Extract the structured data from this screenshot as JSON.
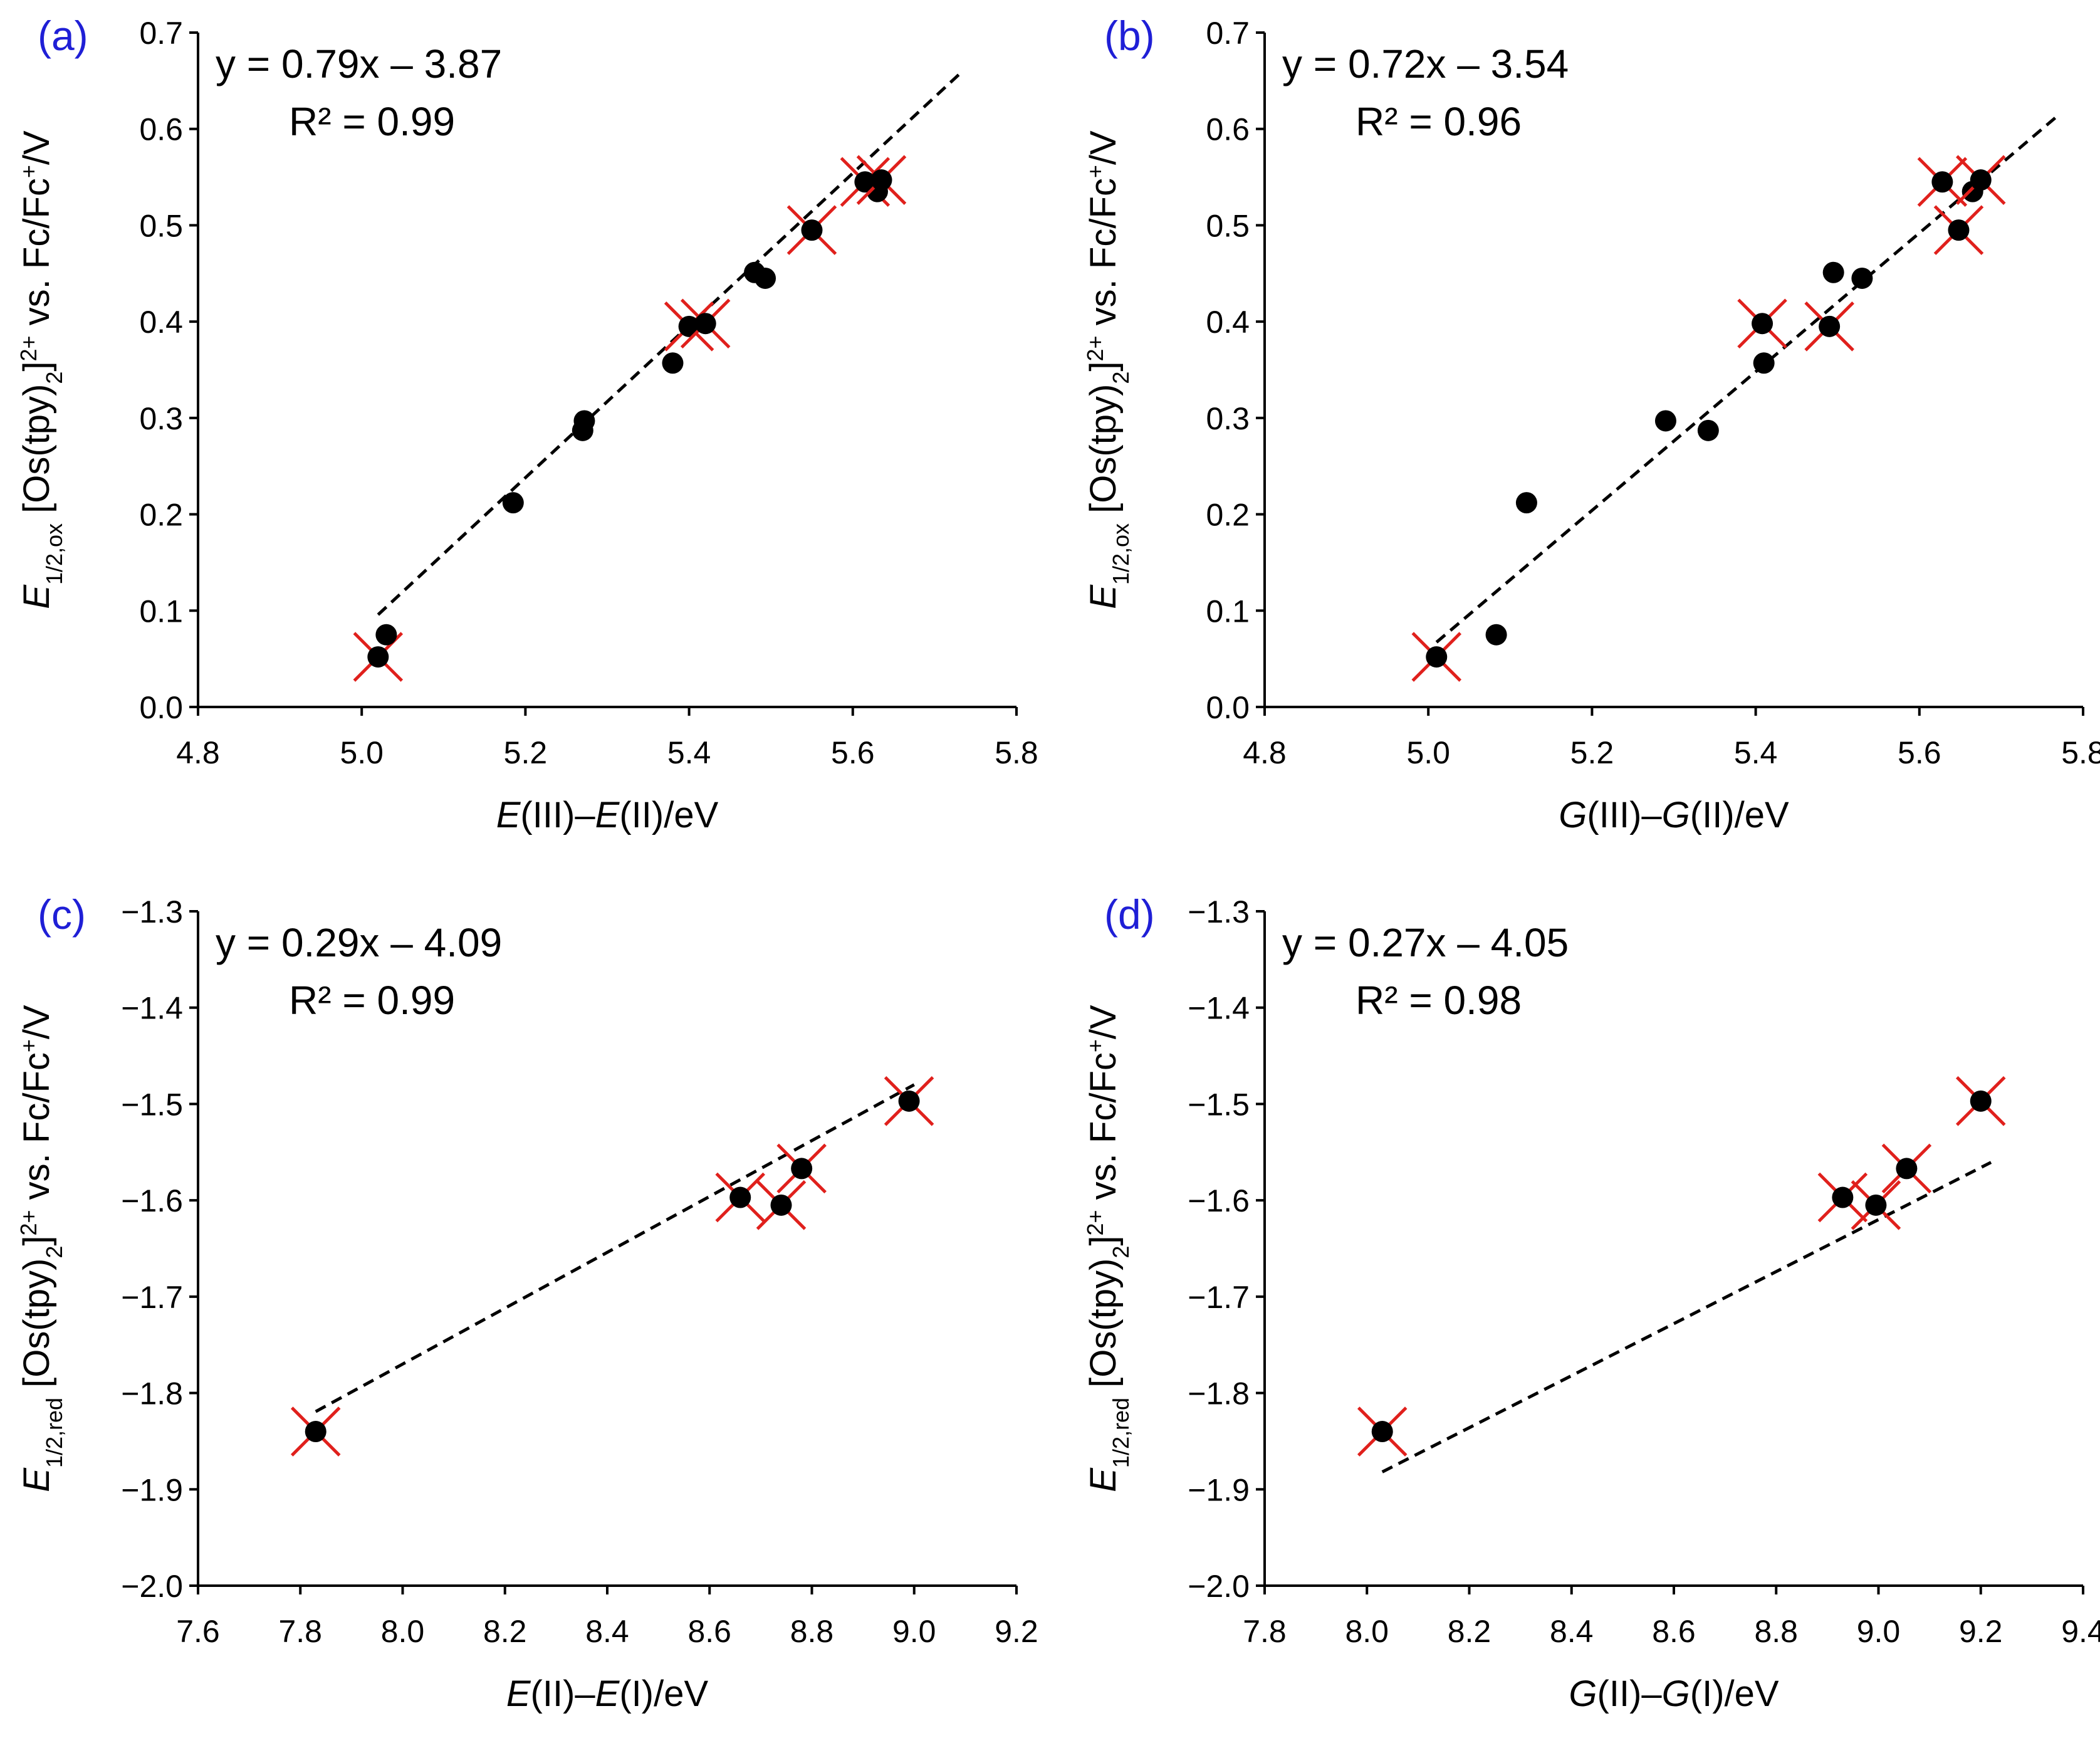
{
  "figure": {
    "chart_data": [
      {
        "type": "scatter",
        "panel_label": "(a)",
        "xlabel_parts": [
          {
            "t": "E",
            "i": true
          },
          {
            "t": "(III)–",
            "i": false
          },
          {
            "t": "E",
            "i": true
          },
          {
            "t": "(II)/eV",
            "i": false
          }
        ],
        "ylabel_parts": [
          {
            "t": "E",
            "i": true
          },
          {
            "t": "1/2,ox",
            "i": false,
            "sub": true
          },
          {
            "t": " [Os(tpy)",
            "i": false
          },
          {
            "t": "2",
            "i": false,
            "sub": true
          },
          {
            "t": "]",
            "i": false
          },
          {
            "t": "2+",
            "i": false,
            "sup": true
          },
          {
            "t": " vs. Fc/Fc",
            "i": false
          },
          {
            "t": "+",
            "i": false,
            "sup": true
          },
          {
            "t": "/V",
            "i": false
          }
        ],
        "xlim": [
          4.8,
          5.8
        ],
        "ylim": [
          0.0,
          0.7
        ],
        "xticks": [
          4.8,
          5.0,
          5.2,
          5.4,
          5.6,
          5.8
        ],
        "yticks": [
          0.0,
          0.1,
          0.2,
          0.3,
          0.4,
          0.5,
          0.6,
          0.7
        ],
        "xtick_labels": [
          "4.8",
          "5.0",
          "5.2",
          "5.4",
          "5.6",
          "5.8"
        ],
        "ytick_labels": [
          "0.0",
          "0.1",
          "0.2",
          "0.3",
          "0.4",
          "0.5",
          "0.6",
          "0.7"
        ],
        "equation": "y = 0.79x – 3.87",
        "r_squared": "R² = 0.99",
        "fit": {
          "slope": 0.79,
          "intercept": -3.87,
          "x_range": [
            5.02,
            5.73
          ]
        },
        "points": [
          {
            "x": 5.02,
            "y": 0.052,
            "crossed": true
          },
          {
            "x": 5.03,
            "y": 0.075,
            "crossed": false
          },
          {
            "x": 5.185,
            "y": 0.212,
            "crossed": false
          },
          {
            "x": 5.27,
            "y": 0.287,
            "crossed": false
          },
          {
            "x": 5.272,
            "y": 0.297,
            "crossed": false
          },
          {
            "x": 5.38,
            "y": 0.357,
            "crossed": false
          },
          {
            "x": 5.4,
            "y": 0.395,
            "crossed": true
          },
          {
            "x": 5.42,
            "y": 0.398,
            "crossed": true
          },
          {
            "x": 5.48,
            "y": 0.451,
            "crossed": false
          },
          {
            "x": 5.493,
            "y": 0.445,
            "crossed": false
          },
          {
            "x": 5.55,
            "y": 0.495,
            "crossed": true
          },
          {
            "x": 5.615,
            "y": 0.545,
            "crossed": true
          },
          {
            "x": 5.63,
            "y": 0.535,
            "crossed": false
          },
          {
            "x": 5.635,
            "y": 0.547,
            "crossed": true
          }
        ]
      },
      {
        "type": "scatter",
        "panel_label": "(b)",
        "xlabel_parts": [
          {
            "t": "G",
            "i": true
          },
          {
            "t": "(III)–",
            "i": false
          },
          {
            "t": "G",
            "i": true
          },
          {
            "t": "(II)/eV",
            "i": false
          }
        ],
        "ylabel_parts": [
          {
            "t": "E",
            "i": true
          },
          {
            "t": "1/2,ox",
            "i": false,
            "sub": true
          },
          {
            "t": " [Os(tpy)",
            "i": false
          },
          {
            "t": "2",
            "i": false,
            "sub": true
          },
          {
            "t": "]",
            "i": false
          },
          {
            "t": "2+",
            "i": false,
            "sup": true
          },
          {
            "t": " vs. Fc/Fc",
            "i": false
          },
          {
            "t": "+",
            "i": false,
            "sup": true
          },
          {
            "t": "/V",
            "i": false
          }
        ],
        "xlim": [
          4.8,
          5.8
        ],
        "ylim": [
          0.0,
          0.7
        ],
        "xticks": [
          4.8,
          5.0,
          5.2,
          5.4,
          5.6,
          5.8
        ],
        "yticks": [
          0.0,
          0.1,
          0.2,
          0.3,
          0.4,
          0.5,
          0.6,
          0.7
        ],
        "xtick_labels": [
          "4.8",
          "5.0",
          "5.2",
          "5.4",
          "5.6",
          "5.8"
        ],
        "ytick_labels": [
          "0.0",
          "0.1",
          "0.2",
          "0.3",
          "0.4",
          "0.5",
          "0.6",
          "0.7"
        ],
        "equation": "y = 0.72x – 3.54",
        "r_squared": "R² = 0.96",
        "fit": {
          "slope": 0.72,
          "intercept": -3.54,
          "x_range": [
            5.01,
            5.77
          ]
        },
        "points": [
          {
            "x": 5.01,
            "y": 0.052,
            "crossed": true
          },
          {
            "x": 5.083,
            "y": 0.075,
            "crossed": false
          },
          {
            "x": 5.12,
            "y": 0.212,
            "crossed": false
          },
          {
            "x": 5.29,
            "y": 0.297,
            "crossed": false
          },
          {
            "x": 5.342,
            "y": 0.287,
            "crossed": false
          },
          {
            "x": 5.408,
            "y": 0.398,
            "crossed": true
          },
          {
            "x": 5.41,
            "y": 0.357,
            "crossed": false
          },
          {
            "x": 5.49,
            "y": 0.395,
            "crossed": true
          },
          {
            "x": 5.495,
            "y": 0.451,
            "crossed": false
          },
          {
            "x": 5.53,
            "y": 0.445,
            "crossed": false
          },
          {
            "x": 5.628,
            "y": 0.545,
            "crossed": true
          },
          {
            "x": 5.648,
            "y": 0.495,
            "crossed": true
          },
          {
            "x": 5.665,
            "y": 0.535,
            "crossed": false
          },
          {
            "x": 5.675,
            "y": 0.547,
            "crossed": true
          }
        ]
      },
      {
        "type": "scatter",
        "panel_label": "(c)",
        "xlabel_parts": [
          {
            "t": "E",
            "i": true
          },
          {
            "t": "(II)–",
            "i": false
          },
          {
            "t": "E",
            "i": true
          },
          {
            "t": "(I)/eV",
            "i": false
          }
        ],
        "ylabel_parts": [
          {
            "t": "E",
            "i": true
          },
          {
            "t": "1/2,red",
            "i": false,
            "sub": true
          },
          {
            "t": " [Os(tpy)",
            "i": false
          },
          {
            "t": "2",
            "i": false,
            "sub": true
          },
          {
            "t": "]",
            "i": false
          },
          {
            "t": "2+",
            "i": false,
            "sup": true
          },
          {
            "t": " vs. Fc/Fc",
            "i": false
          },
          {
            "t": "+",
            "i": false,
            "sup": true
          },
          {
            "t": "/V",
            "i": false
          }
        ],
        "xlim": [
          7.6,
          9.2
        ],
        "ylim": [
          -2.0,
          -1.3
        ],
        "xticks": [
          7.6,
          7.8,
          8.0,
          8.2,
          8.4,
          8.6,
          8.8,
          9.0,
          9.2
        ],
        "yticks": [
          -2.0,
          -1.9,
          -1.8,
          -1.7,
          -1.6,
          -1.5,
          -1.4,
          -1.3
        ],
        "xtick_labels": [
          "7.6",
          "7.8",
          "8.0",
          "8.2",
          "8.4",
          "8.6",
          "8.8",
          "9.0",
          "9.2"
        ],
        "ytick_labels": [
          "−2.0",
          "−1.9",
          "−1.8",
          "−1.7",
          "−1.6",
          "−1.5",
          "−1.4",
          "−1.3"
        ],
        "equation": "y = 0.29x – 4.09",
        "r_squared": "R² = 0.99",
        "fit": {
          "slope": 0.29,
          "intercept": -4.09,
          "x_range": [
            7.83,
            9.0
          ]
        },
        "points": [
          {
            "x": 7.83,
            "y": -1.84,
            "crossed": true
          },
          {
            "x": 8.66,
            "y": -1.597,
            "crossed": true
          },
          {
            "x": 8.74,
            "y": -1.605,
            "crossed": true
          },
          {
            "x": 8.78,
            "y": -1.567,
            "crossed": true
          },
          {
            "x": 8.99,
            "y": -1.497,
            "crossed": true
          }
        ]
      },
      {
        "type": "scatter",
        "panel_label": "(d)",
        "xlabel_parts": [
          {
            "t": "G",
            "i": true
          },
          {
            "t": "(II)–",
            "i": false
          },
          {
            "t": "G",
            "i": true
          },
          {
            "t": "(I)/eV",
            "i": false
          }
        ],
        "ylabel_parts": [
          {
            "t": "E",
            "i": true
          },
          {
            "t": "1/2,red",
            "i": false,
            "sub": true
          },
          {
            "t": " [Os(tpy)",
            "i": false
          },
          {
            "t": "2",
            "i": false,
            "sub": true
          },
          {
            "t": "]",
            "i": false
          },
          {
            "t": "2+",
            "i": false,
            "sup": true
          },
          {
            "t": " vs. Fc/Fc",
            "i": false
          },
          {
            "t": "+",
            "i": false,
            "sup": true
          },
          {
            "t": "/V",
            "i": false
          }
        ],
        "xlim": [
          7.8,
          9.4
        ],
        "ylim": [
          -2.0,
          -1.3
        ],
        "xticks": [
          7.8,
          8.0,
          8.2,
          8.4,
          8.6,
          8.8,
          9.0,
          9.2,
          9.4
        ],
        "yticks": [
          -2.0,
          -1.9,
          -1.8,
          -1.7,
          -1.6,
          -1.5,
          -1.4,
          -1.3
        ],
        "xtick_labels": [
          "7.8",
          "8.0",
          "8.2",
          "8.4",
          "8.6",
          "8.8",
          "9.0",
          "9.2",
          "9.4"
        ],
        "ytick_labels": [
          "−2.0",
          "−1.9",
          "−1.8",
          "−1.7",
          "−1.6",
          "−1.5",
          "−1.4",
          "−1.3"
        ],
        "equation": "y = 0.27x – 4.05",
        "r_squared": "R² = 0.98",
        "fit": {
          "slope": 0.27,
          "intercept": -4.05,
          "x_range": [
            8.03,
            9.22
          ]
        },
        "points": [
          {
            "x": 8.03,
            "y": -1.84,
            "crossed": true
          },
          {
            "x": 8.93,
            "y": -1.597,
            "crossed": true
          },
          {
            "x": 8.995,
            "y": -1.605,
            "crossed": true
          },
          {
            "x": 9.055,
            "y": -1.567,
            "crossed": true
          },
          {
            "x": 9.2,
            "y": -1.497,
            "crossed": true
          }
        ]
      }
    ]
  }
}
